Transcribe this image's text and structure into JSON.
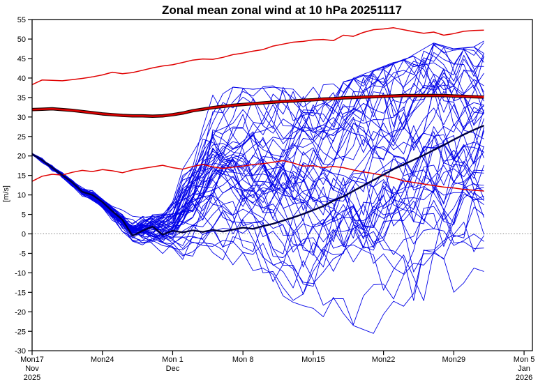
{
  "chart_data": {
    "type": "line",
    "title": "Zonal mean zonal wind at 10 hPa 20251117",
    "ylabel": "[m/s]",
    "ylim": [
      -30,
      55
    ],
    "y_ticks": [
      -30,
      -25,
      -20,
      -15,
      -10,
      -5,
      0,
      5,
      10,
      15,
      20,
      25,
      30,
      35,
      40,
      45,
      50,
      55
    ],
    "grid": false,
    "legend_position": "none",
    "reference_line": {
      "y": 0,
      "style": "dotted",
      "color": "#808080"
    },
    "x_axis": {
      "start_date": "Mon 17 Nov 2025",
      "end_date_axis": "Mon 5 Jan 2026",
      "forecast_end_day": 45,
      "axis_total_days": 49.83,
      "tick_days": [
        0,
        7,
        14,
        21,
        28,
        35,
        42,
        49
      ],
      "tick_labels": [
        "Mon17",
        "Mon24",
        "Mon 1",
        "Mon 8",
        "Mon15",
        "Mon22",
        "Mon29",
        "Mon 5"
      ],
      "tick_sublabels": [
        [
          "Nov",
          "2025"
        ],
        [],
        [
          "Dec"
        ],
        [],
        [],
        [],
        [],
        [
          "Jan",
          "2026"
        ]
      ]
    },
    "n_days": 46,
    "series": [
      {
        "name": "climatology-upper",
        "color": "#e00000",
        "width": 1.5,
        "outline": null,
        "values": [
          38.3,
          39.5,
          39.4,
          39.3,
          39.6,
          39.9,
          40.3,
          40.8,
          41.5,
          41.1,
          41.4,
          42.0,
          42.6,
          43.1,
          43.4,
          44.0,
          44.6,
          44.9,
          44.8,
          45.3,
          46.0,
          46.4,
          46.9,
          47.3,
          48.2,
          48.7,
          49.2,
          49.4,
          49.8,
          49.9,
          49.6,
          51.0,
          50.7,
          51.7,
          52.4,
          52.6,
          52.9,
          52.4,
          51.9,
          51.5,
          51.8,
          51.0,
          51.4,
          52.0,
          52.2,
          52.3
        ]
      },
      {
        "name": "climatology-mean",
        "color": "#dd0000",
        "width": 2.5,
        "outline": "#1a0000",
        "outline_width": 4.6,
        "values": [
          31.9,
          32.0,
          32.1,
          31.9,
          31.7,
          31.4,
          31.1,
          30.8,
          30.6,
          30.4,
          30.3,
          30.3,
          30.2,
          30.3,
          30.6,
          31.0,
          31.6,
          32.0,
          32.4,
          32.7,
          33.0,
          33.2,
          33.4,
          33.6,
          33.8,
          34.0,
          34.1,
          34.3,
          34.4,
          34.6,
          34.7,
          34.9,
          35.0,
          35.1,
          35.2,
          35.3,
          35.4,
          35.5,
          35.5,
          35.5,
          35.5,
          35.5,
          35.4,
          35.3,
          35.2,
          35.1
        ]
      },
      {
        "name": "climatology-lower",
        "color": "#e00000",
        "width": 1.5,
        "outline": null,
        "values": [
          13.5,
          14.8,
          15.3,
          15.1,
          15.8,
          16.3,
          16.0,
          16.5,
          16.2,
          15.7,
          16.4,
          16.8,
          17.2,
          17.6,
          17.0,
          16.6,
          17.3,
          17.8,
          17.2,
          16.8,
          17.1,
          17.4,
          17.8,
          18.0,
          18.4,
          18.8,
          18.2,
          17.4,
          17.5,
          17.0,
          17.3,
          17.0,
          16.4,
          15.9,
          15.5,
          15.0,
          14.4,
          13.6,
          13.2,
          12.8,
          12.4,
          12.0,
          11.8,
          11.4,
          11.2,
          11.0
        ]
      },
      {
        "name": "ensemble-mean",
        "color": "#000040",
        "width": 2.4,
        "outline": null,
        "values": [
          20.5,
          18.9,
          17.0,
          15.1,
          13.2,
          10.8,
          10.0,
          8.2,
          5.8,
          3.6,
          -0.5,
          0.8,
          1.9,
          -0.2,
          0.8,
          0.4,
          0.9,
          0.5,
          1.0,
          0.6,
          1.1,
          1.6,
          1.3,
          2.0,
          2.6,
          3.4,
          4.2,
          5.1,
          6.1,
          7.1,
          8.5,
          9.6,
          11.0,
          12.4,
          13.8,
          15.2,
          16.6,
          17.8,
          19.0,
          20.2,
          21.5,
          22.8,
          24.2,
          25.5,
          26.7,
          27.8
        ]
      }
    ],
    "ensemble": {
      "name": "ensemble-members",
      "count": 51,
      "color": "#0000e8",
      "width": 0.9,
      "seed": 20251117,
      "start_value": 20.5,
      "envelope_days": [
        0,
        1,
        2,
        3,
        4,
        5,
        6,
        7,
        8,
        9,
        10,
        12,
        14,
        16,
        18,
        20,
        22,
        24,
        26,
        28,
        30,
        32,
        34,
        36,
        38,
        40,
        42,
        44,
        45
      ],
      "envelope_min": [
        20.2,
        17.9,
        15.7,
        13.7,
        11.3,
        8.4,
        6.0,
        3.5,
        0.5,
        -2.0,
        -4.5,
        -6.5,
        -9.5,
        -11.5,
        -12.5,
        -14.0,
        -17.0,
        -21.0,
        -23.5,
        -24.0,
        -22.5,
        -24.0,
        -26.0,
        -27.5,
        -28.0,
        -23.5,
        -20.5,
        -19.5,
        -19.0
      ],
      "envelope_max": [
        20.8,
        19.4,
        17.9,
        16.2,
        14.2,
        13.2,
        12.2,
        11.2,
        9.2,
        8.2,
        7.6,
        8.2,
        13.0,
        26.0,
        36.0,
        38.0,
        37.5,
        38.0,
        37.5,
        38.0,
        38.5,
        40.0,
        42.0,
        44.0,
        46.0,
        49.0,
        47.5,
        48.0,
        49.5
      ]
    }
  }
}
